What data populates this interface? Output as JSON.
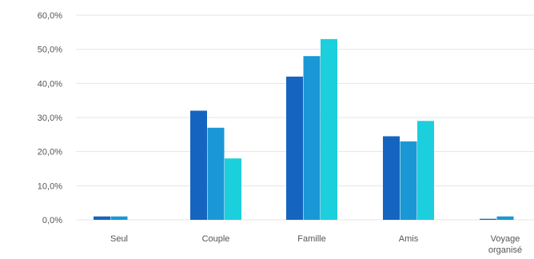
{
  "chart_data": {
    "type": "bar",
    "title": "",
    "xlabel": "",
    "ylabel": "",
    "categories": [
      [
        "Seul"
      ],
      [
        "Couple"
      ],
      [
        "Famille"
      ],
      [
        "Amis"
      ],
      [
        "Voyage",
        "organisé"
      ]
    ],
    "series": [
      {
        "color": "#1565c0",
        "values": [
          1.0,
          32.0,
          42.0,
          24.5,
          0.3
        ]
      },
      {
        "color": "#1a98d6",
        "values": [
          1.0,
          27.0,
          48.0,
          23.0,
          1.0
        ]
      },
      {
        "color": "#1ccfdd",
        "values": [
          0.0,
          18.0,
          53.0,
          29.0,
          0.0
        ]
      }
    ],
    "ylim": [
      0,
      60
    ],
    "yticks": [
      "0,0%",
      "10,0%",
      "20,0%",
      "30,0%",
      "40,0%",
      "50,0%",
      "60,0%"
    ],
    "grid": true,
    "legend": "none"
  }
}
